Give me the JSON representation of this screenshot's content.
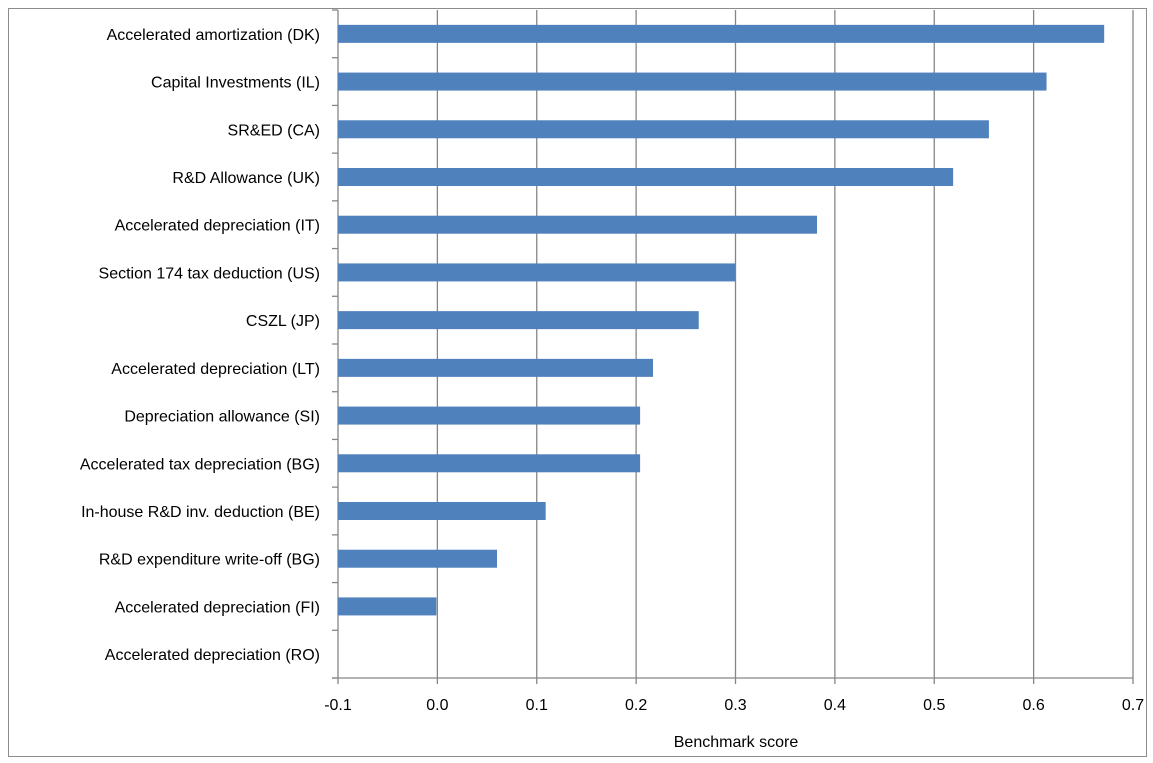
{
  "chart_data": {
    "type": "bar",
    "orientation": "horizontal",
    "title": "",
    "xlabel": "Benchmark score",
    "ylabel": "",
    "xlim": [
      -0.1,
      0.7
    ],
    "x_ticks": [
      "-0.1",
      "0.0",
      "0.1",
      "0.2",
      "0.3",
      "0.4",
      "0.5",
      "0.6",
      "0.7"
    ],
    "x_tick_values": [
      -0.1,
      0.0,
      0.1,
      0.2,
      0.3,
      0.4,
      0.5,
      0.6,
      0.7
    ],
    "grid": "vertical major gridlines",
    "legend": "none",
    "bar_color": "#4f81bd",
    "grid_color": "#868686",
    "categories": [
      "Accelerated amortization (DK)",
      "Capital Investments (IL)",
      "SR&ED (CA)",
      "R&D Allowance (UK)",
      "Accelerated depreciation (IT)",
      "Section 174 tax deduction (US)",
      "CSZL (JP)",
      "Accelerated depreciation (LT)",
      "Depreciation allowance (SI)",
      "Accelerated tax depreciation (BG)",
      "In-house R&D inv. deduction (BE)",
      "R&D expenditure write-off (BG)",
      "Accelerated depreciation (FI)",
      "Accelerated depreciation (RO)"
    ],
    "values": [
      0.671,
      0.613,
      0.555,
      0.519,
      0.382,
      0.3,
      0.263,
      0.217,
      0.204,
      0.204,
      0.109,
      0.06,
      -0.001,
      -0.1
    ]
  }
}
